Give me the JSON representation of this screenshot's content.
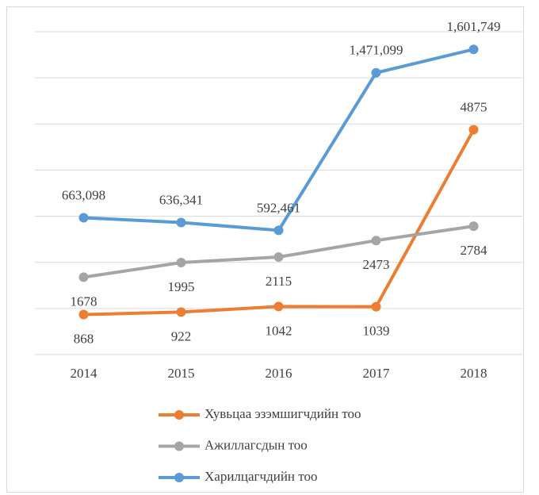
{
  "chart_data": {
    "type": "line",
    "categories": [
      "2014",
      "2015",
      "2016",
      "2017",
      "2018"
    ],
    "series": [
      {
        "name": "Хувьцаа эзэмшигчдийн тоо",
        "color": "#ed7d31",
        "values": [
          868,
          922,
          1042,
          1039,
          4875
        ]
      },
      {
        "name": "Ажиллагсдын тоо",
        "color": "#a5a5a5",
        "values": [
          1678,
          1995,
          2115,
          2473,
          2784
        ]
      },
      {
        "name": "Харилцагчдийн тоо",
        "color": "#5b9bd5",
        "axis": "y2",
        "values": [
          663098,
          636341,
          592461,
          1471099,
          1601749
        ],
        "value_labels": [
          "663,098",
          "636,341",
          "592,461",
          "1,471,099",
          "1,601,749"
        ]
      }
    ],
    "ylim": [
      0,
      7000
    ],
    "yticks": [
      0,
      1000,
      2000,
      3000,
      4000,
      5000,
      6000,
      7000
    ],
    "y2lim": [
      -100000,
      1700000
    ],
    "grid": true,
    "legend": "bottom"
  }
}
